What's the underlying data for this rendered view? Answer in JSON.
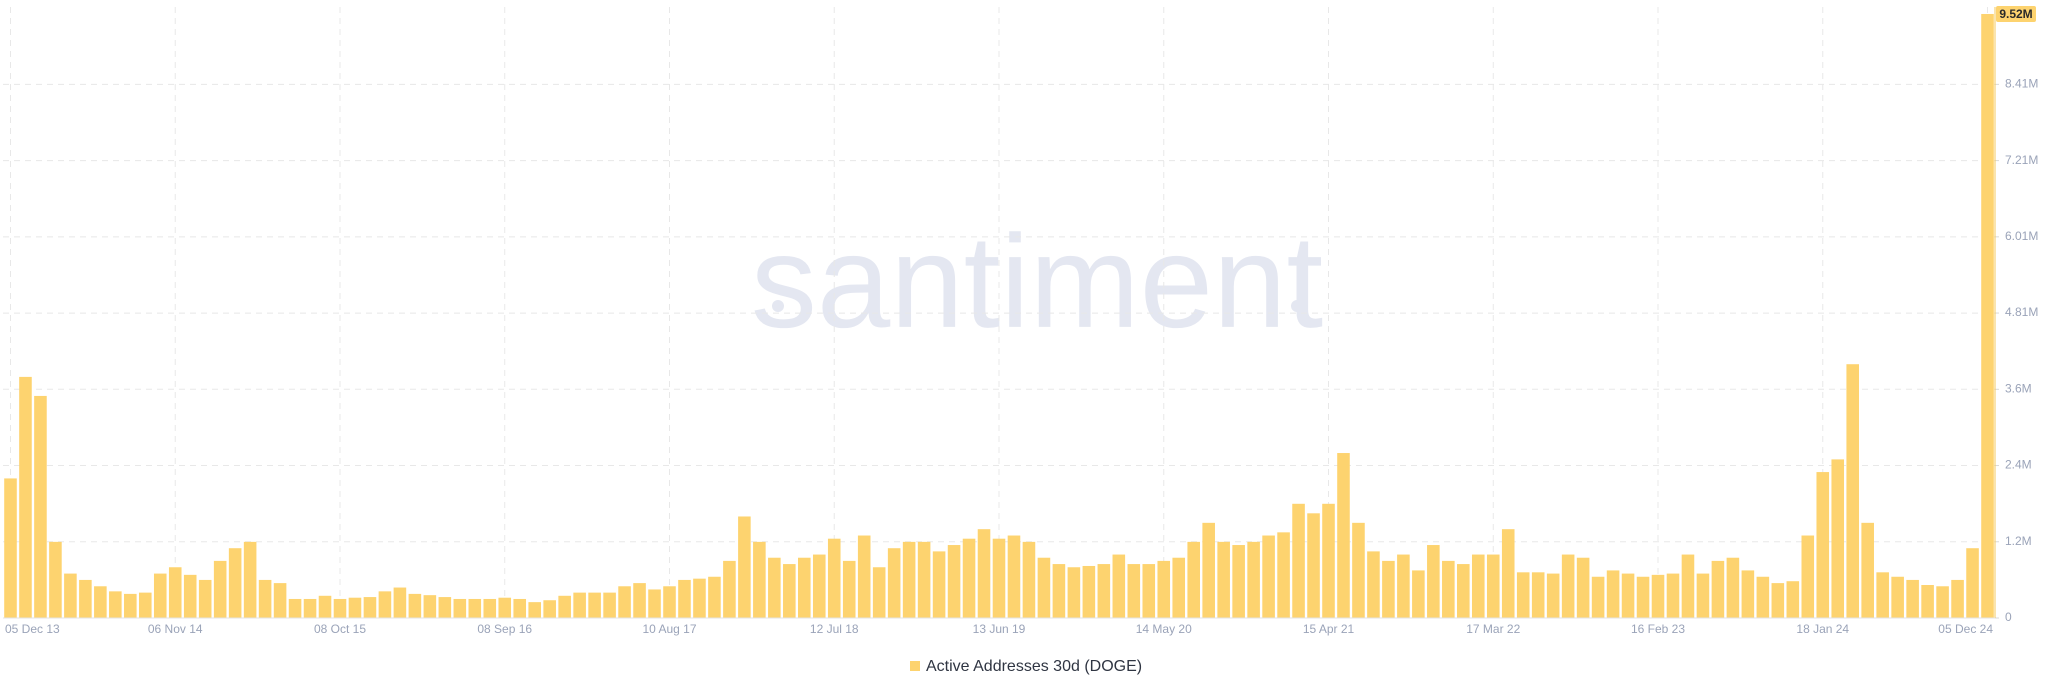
{
  "chart_data": {
    "type": "bar",
    "watermark": "santiment",
    "categories": [
      "05 Dec 13",
      null,
      null,
      null,
      null,
      null,
      null,
      null,
      null,
      null,
      null,
      "06 Nov 14",
      null,
      null,
      null,
      null,
      null,
      null,
      null,
      null,
      null,
      null,
      "08 Oct 15",
      null,
      null,
      null,
      null,
      null,
      null,
      null,
      null,
      null,
      null,
      "08 Sep 16",
      null,
      null,
      null,
      null,
      null,
      null,
      null,
      null,
      null,
      null,
      "10 Aug 17",
      null,
      null,
      null,
      null,
      null,
      null,
      null,
      null,
      null,
      null,
      "12 Jul 18",
      null,
      null,
      null,
      null,
      null,
      null,
      null,
      null,
      null,
      null,
      "13 Jun 19",
      null,
      null,
      null,
      null,
      null,
      null,
      null,
      null,
      null,
      null,
      "14 May 20",
      null,
      null,
      null,
      null,
      null,
      null,
      null,
      null,
      null,
      null,
      "15 Apr 21",
      null,
      null,
      null,
      null,
      null,
      null,
      null,
      null,
      null,
      null,
      "17 Mar 22",
      null,
      null,
      null,
      null,
      null,
      null,
      null,
      null,
      null,
      null,
      "16 Feb 23",
      null,
      null,
      null,
      null,
      null,
      null,
      null,
      null,
      null,
      null,
      "18 Jan 24",
      null,
      null,
      null,
      null,
      null,
      null,
      null,
      null,
      null,
      null,
      "05 Dec 24"
    ],
    "series": [
      {
        "name": "Active Addresses 30d (DOGE)",
        "color": "#fdd36f",
        "values": [
          2200000,
          3800000,
          3500000,
          1200000,
          700000,
          600000,
          500000,
          420000,
          380000,
          400000,
          700000,
          800000,
          680000,
          600000,
          900000,
          1100000,
          1200000,
          600000,
          550000,
          300000,
          300000,
          350000,
          300000,
          320000,
          330000,
          420000,
          480000,
          380000,
          360000,
          330000,
          300000,
          300000,
          300000,
          320000,
          300000,
          250000,
          280000,
          350000,
          400000,
          400000,
          400000,
          500000,
          550000,
          450000,
          500000,
          600000,
          620000,
          650000,
          900000,
          1600000,
          1200000,
          950000,
          850000,
          950000,
          1000000,
          1250000,
          900000,
          1300000,
          800000,
          1100000,
          1200000,
          1200000,
          1050000,
          1150000,
          1250000,
          1400000,
          1250000,
          1300000,
          1200000,
          950000,
          850000,
          800000,
          820000,
          850000,
          1000000,
          850000,
          850000,
          900000,
          950000,
          1200000,
          1500000,
          1200000,
          1150000,
          1200000,
          1300000,
          1350000,
          1800000,
          1650000,
          1800000,
          2600000,
          1500000,
          1050000,
          900000,
          1000000,
          750000,
          1150000,
          900000,
          850000,
          1000000,
          1000000,
          1400000,
          720000,
          720000,
          700000,
          1000000,
          950000,
          650000,
          750000,
          700000,
          650000,
          680000,
          700000,
          1000000,
          700000,
          900000,
          950000,
          750000,
          650000,
          550000,
          580000,
          1300000,
          2300000,
          2500000,
          4000000,
          1500000,
          720000,
          650000,
          600000,
          520000,
          500000,
          600000,
          1100000,
          9520000
        ]
      }
    ],
    "last_value": {
      "value": 9520000,
      "label": "9.52M"
    },
    "ylim": [
      0,
      9630000
    ],
    "yticks": [
      0,
      {
        "value": 1201500,
        "label": "1.2M"
      },
      {
        "value": 2403000,
        "label": "2.4M"
      },
      {
        "value": 3604500,
        "label": "3.6M"
      },
      {
        "value": 4806000,
        "label": "4.81M"
      },
      {
        "value": 6007500,
        "label": "6.01M"
      },
      {
        "value": 7209000,
        "label": "7.21M"
      },
      {
        "value": 8410500,
        "label": "8.41M"
      }
    ],
    "grid": true
  }
}
